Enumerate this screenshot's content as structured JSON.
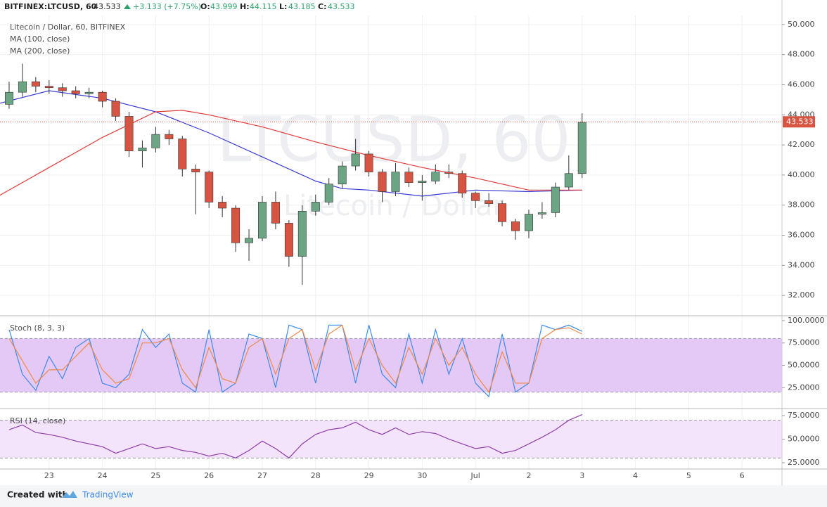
{
  "header": {
    "symbol": "BITFINEX:LTCUSD, 60",
    "price": "43.533",
    "change": "+3.133 (+7.75%)",
    "o_label": "O:",
    "o": "43.999",
    "h_label": "H:",
    "h": "44.115",
    "l_label": "L:",
    "l": "43.185",
    "c_label": "C:",
    "c": "43.533"
  },
  "footer": {
    "created": "Created with",
    "brand": "TradingView"
  },
  "chart_data": [
    {
      "type": "candlestick",
      "title": "LTCUSD, 60",
      "subtitle": "Litecoin / Dollar",
      "name": "Litecoin / Dollar, 60, BITFINEX",
      "up_color": "#6ba583",
      "down_color": "#d75442",
      "x": [
        0.25,
        0.5,
        0.75,
        1,
        1.25,
        1.5,
        1.75,
        2,
        2.25,
        2.5,
        2.75,
        3,
        3.25,
        3.5,
        3.75,
        4,
        4.25,
        4.5,
        4.75,
        5,
        5.25,
        5.5,
        5.75,
        6,
        6.25,
        6.5,
        6.75,
        7,
        7.25,
        7.5,
        7.75,
        8,
        8.25,
        8.5,
        8.75,
        9,
        9.25,
        9.5,
        9.75,
        10,
        10.25,
        10.5,
        10.75,
        11
      ],
      "ohlc": [
        [
          44.7,
          46.2,
          44.4,
          45.5
        ],
        [
          45.5,
          47.4,
          45.2,
          46.2
        ],
        [
          46.2,
          46.5,
          45.5,
          45.9
        ],
        [
          45.9,
          46.3,
          45.4,
          45.8
        ],
        [
          45.8,
          46.1,
          45.2,
          45.6
        ],
        [
          45.6,
          45.9,
          45.1,
          45.4
        ],
        [
          45.4,
          45.8,
          45.1,
          45.5
        ],
        [
          45.5,
          45.6,
          44.5,
          44.9
        ],
        [
          44.9,
          45.1,
          43.6,
          43.9
        ],
        [
          43.9,
          44.2,
          41.2,
          41.6
        ],
        [
          41.6,
          42.3,
          40.5,
          41.8
        ],
        [
          41.8,
          43.2,
          41.5,
          42.7
        ],
        [
          42.7,
          43.0,
          42.0,
          42.4
        ],
        [
          42.4,
          42.6,
          39.9,
          40.4
        ],
        [
          40.4,
          40.7,
          37.4,
          40.2
        ],
        [
          40.2,
          40.3,
          37.8,
          38.2
        ],
        [
          38.2,
          38.6,
          37.2,
          37.8
        ],
        [
          37.8,
          38.0,
          34.9,
          35.5
        ],
        [
          35.5,
          36.4,
          34.3,
          35.8
        ],
        [
          35.8,
          38.6,
          35.6,
          38.2
        ],
        [
          38.2,
          38.9,
          36.4,
          36.8
        ],
        [
          36.8,
          37.0,
          33.9,
          34.6
        ],
        [
          34.6,
          38.0,
          32.7,
          37.6
        ],
        [
          37.6,
          38.7,
          37.3,
          38.2
        ],
        [
          38.2,
          39.8,
          38.0,
          39.4
        ],
        [
          39.4,
          40.9,
          39.1,
          40.6
        ],
        [
          40.6,
          42.4,
          40.3,
          41.4
        ],
        [
          41.4,
          41.6,
          39.9,
          40.2
        ],
        [
          40.2,
          40.4,
          38.2,
          38.9
        ],
        [
          38.9,
          40.8,
          38.6,
          40.2
        ],
        [
          40.2,
          40.5,
          39.2,
          39.5
        ],
        [
          39.5,
          40.0,
          38.3,
          39.6
        ],
        [
          39.6,
          40.7,
          39.4,
          40.2
        ],
        [
          40.2,
          40.7,
          39.8,
          40.1
        ],
        [
          40.1,
          40.3,
          38.5,
          38.8
        ],
        [
          38.8,
          38.9,
          37.8,
          38.3
        ],
        [
          38.3,
          38.8,
          37.9,
          38.1
        ],
        [
          38.1,
          38.3,
          36.6,
          36.9
        ],
        [
          36.9,
          37.1,
          35.7,
          36.3
        ],
        [
          36.3,
          37.7,
          35.8,
          37.4
        ],
        [
          37.4,
          38.2,
          37.1,
          37.5
        ],
        [
          37.5,
          39.5,
          37.2,
          39.2
        ],
        [
          39.2,
          41.3,
          39.0,
          40.1
        ],
        [
          40.1,
          44.1,
          39.8,
          43.5
        ]
      ],
      "overlays": [
        {
          "name": "MA (100, close)",
          "color": "#3b3bd6",
          "x": [
            0,
            1,
            2,
            3,
            4,
            5,
            6,
            6.5,
            7,
            8,
            9,
            10,
            11
          ],
          "values": [
            44.7,
            45.6,
            45.1,
            44.2,
            42.8,
            41.2,
            39.6,
            39.1,
            39.0,
            38.6,
            39.0,
            38.9,
            39.0
          ]
        },
        {
          "name": "MA (200, close)",
          "color": "#e23b3b",
          "x": [
            0,
            1,
            2,
            3,
            3.5,
            4,
            5,
            6,
            7,
            8,
            9,
            10,
            11
          ],
          "values": [
            38.5,
            40.5,
            42.5,
            44.2,
            44.3,
            44.0,
            43.2,
            42.2,
            41.3,
            40.5,
            39.8,
            39.0,
            39.0
          ]
        }
      ],
      "last_price": {
        "value": 43.533,
        "label": "43.533"
      },
      "ylim": [
        30.7,
        50.6
      ],
      "yticks": [
        {
          "value": 32,
          "label": "32.000"
        },
        {
          "value": 34,
          "label": "34.000"
        },
        {
          "value": 36,
          "label": "36.000"
        },
        {
          "value": 38,
          "label": "38.000"
        },
        {
          "value": 40,
          "label": "40.000"
        },
        {
          "value": 42,
          "label": "42.000"
        },
        {
          "value": 44,
          "label": "44.000"
        },
        {
          "value": 46,
          "label": "46.000"
        },
        {
          "value": 48,
          "label": "48.000"
        },
        {
          "value": 50,
          "label": "50.000"
        }
      ],
      "grid": true
    },
    {
      "type": "line",
      "title": "Stoch (8, 3, 3)",
      "band": [
        20,
        80
      ],
      "band_color": "#e4c8f5",
      "x": [
        0.25,
        0.5,
        0.75,
        1,
        1.25,
        1.5,
        1.75,
        2,
        2.25,
        2.5,
        2.75,
        3,
        3.25,
        3.5,
        3.75,
        4,
        4.25,
        4.5,
        4.75,
        5,
        5.25,
        5.5,
        5.75,
        6,
        6.25,
        6.5,
        6.75,
        7,
        7.25,
        7.5,
        7.75,
        8,
        8.25,
        8.5,
        8.75,
        9,
        9.25,
        9.5,
        9.75,
        10,
        10.25,
        10.5,
        10.75,
        11
      ],
      "series": [
        {
          "color": "#3d8bea",
          "values": [
            90,
            40,
            22,
            60,
            35,
            70,
            80,
            30,
            25,
            40,
            90,
            70,
            85,
            30,
            20,
            90,
            20,
            30,
            85,
            80,
            25,
            95,
            90,
            30,
            95,
            95,
            30,
            95,
            40,
            25,
            85,
            30,
            90,
            40,
            80,
            30,
            15,
            85,
            20,
            30,
            95,
            90,
            95,
            88
          ]
        },
        {
          "color": "#f08a4b",
          "values": [
            80,
            55,
            30,
            45,
            45,
            60,
            75,
            45,
            30,
            35,
            75,
            75,
            80,
            45,
            25,
            70,
            35,
            30,
            70,
            80,
            40,
            80,
            90,
            45,
            85,
            95,
            45,
            80,
            50,
            30,
            70,
            40,
            80,
            50,
            70,
            40,
            20,
            65,
            30,
            30,
            80,
            90,
            92,
            85
          ]
        }
      ],
      "ylim": [
        2.4,
        104.7
      ],
      "yticks": [
        {
          "value": 25,
          "label": "25.0000"
        },
        {
          "value": 50,
          "label": "50.0000"
        },
        {
          "value": 75,
          "label": "75.0000"
        },
        {
          "value": 100,
          "label": "100.0000"
        }
      ]
    },
    {
      "type": "line",
      "title": "RSI (14, close)",
      "band": [
        30,
        70
      ],
      "band_color": "#f3e4fb",
      "x": [
        0.25,
        0.5,
        0.75,
        1,
        1.25,
        1.5,
        1.75,
        2,
        2.25,
        2.5,
        2.75,
        3,
        3.25,
        3.5,
        3.75,
        4,
        4.25,
        4.5,
        4.75,
        5,
        5.25,
        5.5,
        5.75,
        6,
        6.25,
        6.5,
        6.75,
        7,
        7.25,
        7.5,
        7.75,
        8,
        8.25,
        8.5,
        8.75,
        9,
        9.25,
        9.5,
        9.75,
        10,
        10.25,
        10.5,
        10.75,
        11
      ],
      "series": [
        {
          "color": "#8e3ea8",
          "values": [
            60,
            65,
            57,
            55,
            52,
            48,
            45,
            42,
            35,
            40,
            45,
            40,
            42,
            38,
            36,
            32,
            35,
            30,
            38,
            48,
            40,
            30,
            45,
            55,
            60,
            62,
            68,
            60,
            55,
            62,
            55,
            58,
            56,
            50,
            45,
            40,
            42,
            35,
            38,
            45,
            52,
            60,
            70,
            76
          ]
        }
      ],
      "ylim": [
        18.3,
        81.7
      ],
      "yticks": [
        {
          "value": 25,
          "label": "25.0000"
        },
        {
          "value": 50,
          "label": "50.0000"
        },
        {
          "value": 75,
          "label": "75.0000"
        }
      ],
      "xlim": [
        0.079,
        14.75
      ],
      "xticks": [
        {
          "value": 1,
          "label": "23"
        },
        {
          "value": 2,
          "label": "24"
        },
        {
          "value": 3,
          "label": "25"
        },
        {
          "value": 4,
          "label": "26"
        },
        {
          "value": 5,
          "label": "27"
        },
        {
          "value": 6,
          "label": "28"
        },
        {
          "value": 7,
          "label": "29"
        },
        {
          "value": 8,
          "label": "30"
        },
        {
          "value": 9,
          "label": "Jul"
        },
        {
          "value": 10,
          "label": "2"
        },
        {
          "value": 11,
          "label": "3"
        },
        {
          "value": 12,
          "label": "4"
        },
        {
          "value": 13,
          "label": "5"
        },
        {
          "value": 14,
          "label": "6"
        }
      ]
    }
  ]
}
